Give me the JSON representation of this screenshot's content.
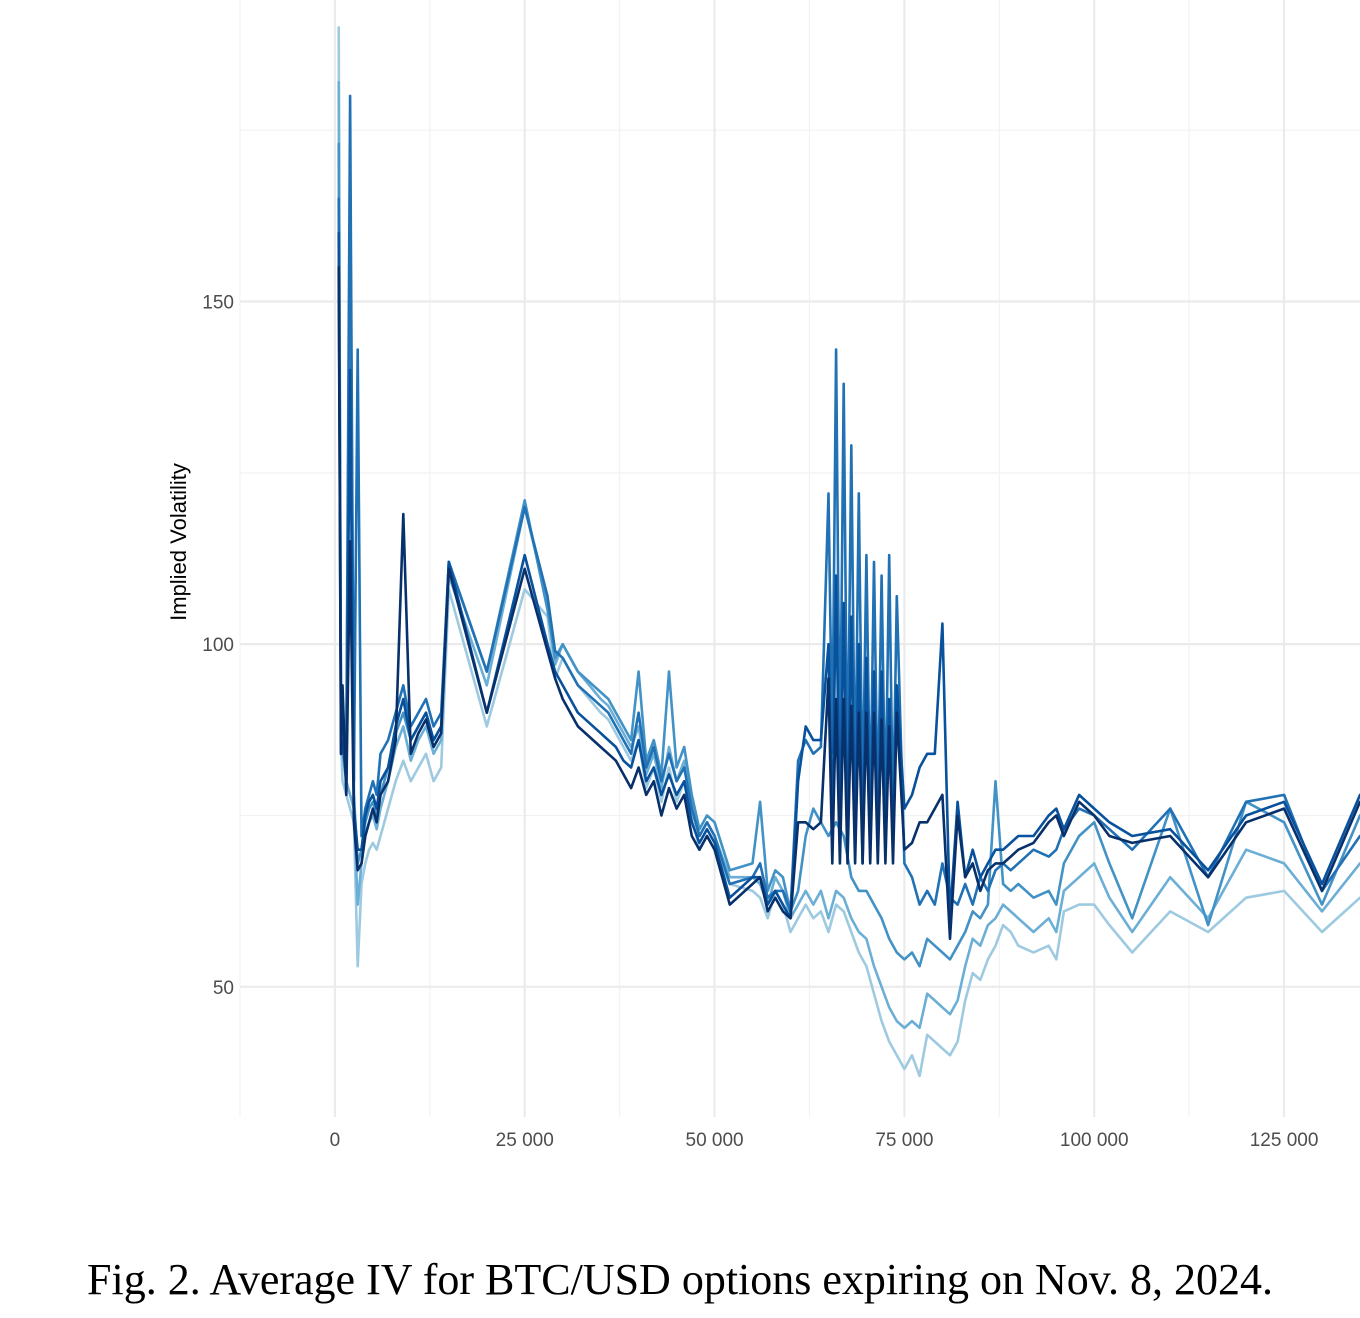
{
  "caption": "Fig. 2.  Average IV for BTC/USD options expiring on Nov. 8, 2024.",
  "chart_data": {
    "type": "line",
    "title": "",
    "xlabel": "",
    "ylabel": "Implied Volatility",
    "xlim": [
      -12500,
      135000
    ],
    "ylim": [
      31,
      194
    ],
    "x_ticks": [
      0,
      25000,
      50000,
      75000,
      100000,
      125000
    ],
    "x_tick_labels": [
      "0",
      "25 000",
      "50 000",
      "75 000",
      "100 000",
      "125 000"
    ],
    "y_ticks": [
      50,
      100,
      150
    ],
    "y_tick_labels": [
      "50",
      "100",
      "150"
    ],
    "grid": true,
    "legend": "none",
    "series": [
      {
        "color": "#9ecae1",
        "x": [
          500,
          800,
          1000,
          1500,
          2000,
          2500,
          3000,
          3500,
          4000,
          4500,
          5000,
          5500,
          6000,
          7000,
          8000,
          9000,
          10000,
          11000,
          12000,
          13000,
          14000,
          15000,
          20000,
          25000,
          28000,
          29000,
          30000,
          32000,
          35000,
          36000,
          37000,
          38000,
          39000,
          40000,
          41000,
          42000,
          43000,
          44000,
          45000,
          46000,
          47000,
          48000,
          49000,
          50000,
          52000,
          55000,
          56000,
          57000,
          58000,
          59000,
          60000,
          61000,
          62000,
          63000,
          64000,
          65000,
          66000,
          67000,
          68000,
          69000,
          70000,
          71000,
          72000,
          73000,
          74000,
          75000,
          76000,
          77000,
          78000,
          79000,
          80000,
          81000,
          82000,
          83000,
          84000,
          85000,
          86000,
          87000,
          88000,
          89000,
          90000,
          92000,
          94000,
          95000,
          96000,
          98000,
          100000,
          102000,
          105000,
          110000,
          115000,
          120000,
          125000,
          130000,
          135000
        ],
        "y": [
          190,
          86,
          80,
          78,
          76,
          74,
          53,
          65,
          68,
          70,
          71,
          70,
          72,
          76,
          80,
          83,
          80,
          82,
          84,
          80,
          82,
          108,
          88,
          108,
          104,
          95,
          98,
          94,
          90,
          89,
          87,
          85,
          83,
          86,
          79,
          82,
          77,
          82,
          77,
          80,
          75,
          70,
          72,
          70,
          65,
          64,
          63,
          60,
          64,
          62,
          58,
          60,
          62,
          60,
          61,
          58,
          62,
          61,
          58,
          55,
          53,
          49,
          45,
          42,
          40,
          38,
          40,
          37,
          43,
          42,
          41,
          40,
          42,
          48,
          52,
          51,
          54,
          56,
          59,
          58,
          56,
          55,
          56,
          54,
          61,
          62,
          62,
          59,
          55,
          61,
          58,
          63,
          64,
          58,
          63
        ]
      },
      {
        "color": "#6baed6",
        "x": [
          500,
          800,
          1000,
          1500,
          2000,
          2500,
          3000,
          3500,
          4000,
          4500,
          5000,
          5500,
          6000,
          7000,
          8000,
          9000,
          10000,
          11000,
          12000,
          13000,
          14000,
          15000,
          20000,
          25000,
          28000,
          29000,
          30000,
          32000,
          35000,
          36000,
          37000,
          38000,
          39000,
          40000,
          41000,
          42000,
          43000,
          44000,
          45000,
          46000,
          47000,
          48000,
          49000,
          50000,
          52000,
          55000,
          56000,
          57000,
          58000,
          59000,
          60000,
          61000,
          62000,
          63000,
          64000,
          65000,
          66000,
          67000,
          68000,
          69000,
          70000,
          71000,
          72000,
          73000,
          74000,
          75000,
          76000,
          77000,
          78000,
          79000,
          80000,
          81000,
          82000,
          83000,
          84000,
          85000,
          86000,
          87000,
          88000,
          89000,
          90000,
          92000,
          94000,
          95000,
          96000,
          98000,
          100000,
          102000,
          105000,
          110000,
          115000,
          120000,
          125000,
          130000,
          135000
        ],
        "y": [
          182,
          88,
          84,
          80,
          78,
          76,
          62,
          68,
          72,
          74,
          75,
          73,
          76,
          80,
          85,
          88,
          83,
          86,
          88,
          84,
          86,
          110,
          94,
          120,
          106,
          97,
          100,
          96,
          92,
          91,
          89,
          87,
          85,
          88,
          81,
          84,
          79,
          85,
          80,
          83,
          77,
          72,
          74,
          72,
          66,
          66,
          65,
          62,
          66,
          64,
          60,
          62,
          64,
          62,
          64,
          60,
          64,
          63,
          60,
          58,
          57,
          53,
          50,
          47,
          45,
          44,
          45,
          44,
          49,
          48,
          47,
          46,
          48,
          53,
          57,
          56,
          59,
          60,
          62,
          61,
          60,
          58,
          60,
          58,
          64,
          66,
          68,
          63,
          58,
          66,
          60,
          70,
          68,
          61,
          68
        ]
      },
      {
        "color": "#4292c6",
        "x": [
          500,
          800,
          1000,
          1500,
          2000,
          2500,
          3000,
          3500,
          4000,
          4500,
          5000,
          5500,
          6000,
          7000,
          8000,
          9000,
          10000,
          11000,
          12000,
          13000,
          14000,
          15000,
          20000,
          25000,
          28000,
          29000,
          30000,
          32000,
          35000,
          36000,
          37000,
          38000,
          39000,
          40000,
          41000,
          42000,
          43000,
          44000,
          45000,
          46000,
          47000,
          48000,
          49000,
          50000,
          52000,
          55000,
          56000,
          57000,
          58000,
          59000,
          60000,
          61000,
          62000,
          63000,
          64000,
          65000,
          66000,
          67000,
          68000,
          69000,
          70000,
          71000,
          72000,
          73000,
          74000,
          75000,
          76000,
          77000,
          78000,
          79000,
          80000,
          81000,
          82000,
          83000,
          84000,
          85000,
          86000,
          87000,
          88000,
          89000,
          90000,
          92000,
          94000,
          95000,
          96000,
          98000,
          100000,
          102000,
          105000,
          110000,
          115000,
          120000,
          125000,
          130000,
          135000
        ],
        "y": [
          173,
          90,
          86,
          82,
          170,
          78,
          68,
          70,
          74,
          76,
          77,
          75,
          78,
          82,
          87,
          90,
          86,
          88,
          90,
          86,
          88,
          112,
          96,
          121,
          105,
          98,
          100,
          96,
          93,
          92,
          90,
          88,
          86,
          96,
          83,
          86,
          81,
          96,
          82,
          85,
          78,
          73,
          75,
          74,
          67,
          68,
          77,
          64,
          67,
          66,
          61,
          64,
          72,
          76,
          74,
          72,
          74,
          72,
          66,
          64,
          64,
          62,
          60,
          57,
          55,
          54,
          55,
          53,
          57,
          56,
          55,
          54,
          56,
          58,
          61,
          60,
          62,
          80,
          65,
          64,
          65,
          63,
          64,
          62,
          68,
          72,
          74,
          68,
          60,
          76,
          59,
          77,
          74,
          62,
          75
        ]
      },
      {
        "color": "#2171b5",
        "x": [
          500,
          800,
          1000,
          1500,
          2000,
          2500,
          3000,
          3500,
          4000,
          4500,
          5000,
          5500,
          6000,
          7000,
          8000,
          9000,
          10000,
          11000,
          12000,
          13000,
          14000,
          15000,
          20000,
          25000,
          28000,
          29000,
          30000,
          32000,
          35000,
          36000,
          37000,
          38000,
          39000,
          40000,
          41000,
          42000,
          43000,
          44000,
          45000,
          46000,
          47000,
          48000,
          49000,
          50000,
          52000,
          55000,
          56000,
          57000,
          58000,
          59000,
          60000,
          61000,
          62000,
          63000,
          64000,
          65000,
          65500,
          66000,
          66500,
          67000,
          67500,
          68000,
          68500,
          69000,
          69500,
          70000,
          70500,
          71000,
          71500,
          72000,
          72500,
          73000,
          73500,
          74000,
          75000,
          76000,
          77000,
          78000,
          79000,
          80000,
          81000,
          82000,
          83000,
          84000,
          85000,
          86000,
          87000,
          88000,
          89000,
          90000,
          92000,
          94000,
          95000,
          96000,
          98000,
          100000,
          102000,
          105000,
          110000,
          115000,
          120000,
          125000,
          130000,
          135000
        ],
        "y": [
          165,
          92,
          88,
          84,
          180,
          80,
          143,
          72,
          76,
          78,
          80,
          78,
          84,
          86,
          90,
          94,
          88,
          90,
          92,
          88,
          90,
          112,
          96,
          120,
          107,
          99,
          98,
          94,
          91,
          90,
          88,
          86,
          84,
          90,
          82,
          85,
          80,
          84,
          80,
          82,
          76,
          72,
          74,
          72,
          65,
          66,
          68,
          63,
          64,
          64,
          61,
          83,
          86,
          84,
          85,
          122,
          84,
          143,
          80,
          138,
          78,
          129,
          77,
          122,
          76,
          113,
          75,
          112,
          75,
          110,
          75,
          113,
          74,
          107,
          68,
          66,
          62,
          64,
          62,
          68,
          63,
          62,
          65,
          62,
          66,
          64,
          67,
          68,
          67,
          68,
          70,
          69,
          70,
          73,
          76,
          75,
          73,
          70,
          76,
          66,
          77,
          78,
          64,
          72
        ]
      },
      {
        "color": "#08519c",
        "x": [
          500,
          800,
          1000,
          1500,
          2000,
          2500,
          3000,
          3500,
          4000,
          4500,
          5000,
          5500,
          6000,
          7000,
          8000,
          9000,
          10000,
          11000,
          12000,
          13000,
          14000,
          15000,
          20000,
          25000,
          28000,
          29000,
          30000,
          32000,
          35000,
          36000,
          37000,
          38000,
          39000,
          40000,
          41000,
          42000,
          43000,
          44000,
          45000,
          46000,
          47000,
          48000,
          49000,
          50000,
          52000,
          55000,
          56000,
          57000,
          58000,
          59000,
          60000,
          61000,
          62000,
          63000,
          64000,
          65000,
          65500,
          66000,
          66500,
          67000,
          67500,
          68000,
          68500,
          69000,
          69500,
          70000,
          70500,
          71000,
          71500,
          72000,
          72500,
          73000,
          73500,
          74000,
          75000,
          76000,
          77000,
          78000,
          79000,
          80000,
          81000,
          82000,
          83000,
          84000,
          85000,
          86000,
          87000,
          88000,
          89000,
          90000,
          92000,
          94000,
          95000,
          96000,
          98000,
          100000,
          102000,
          105000,
          110000,
          115000,
          120000,
          125000,
          130000,
          135000
        ],
        "y": [
          160,
          84,
          86,
          80,
          140,
          76,
          70,
          70,
          75,
          77,
          78,
          76,
          80,
          82,
          88,
          92,
          86,
          88,
          90,
          86,
          88,
          112,
          90,
          113,
          100,
          96,
          94,
          90,
          87,
          86,
          85,
          83,
          82,
          86,
          80,
          82,
          78,
          81,
          78,
          80,
          74,
          71,
          73,
          71,
          63,
          66,
          66,
          62,
          64,
          62,
          60,
          80,
          88,
          86,
          86,
          100,
          72,
          110,
          70,
          106,
          70,
          104,
          70,
          100,
          68,
          98,
          70,
          96,
          70,
          96,
          70,
          92,
          70,
          94,
          76,
          78,
          82,
          84,
          84,
          103,
          60,
          77,
          66,
          70,
          66,
          68,
          70,
          70,
          71,
          72,
          72,
          75,
          76,
          73,
          78,
          76,
          74,
          72,
          73,
          67,
          75,
          77,
          65,
          78
        ]
      },
      {
        "color": "#08306b",
        "x": [
          500,
          800,
          1000,
          1500,
          2000,
          2500,
          3000,
          3500,
          4000,
          4500,
          5000,
          5500,
          6000,
          7000,
          8000,
          9000,
          10000,
          11000,
          12000,
          13000,
          14000,
          15000,
          20000,
          25000,
          28000,
          29000,
          30000,
          32000,
          35000,
          36000,
          37000,
          38000,
          39000,
          40000,
          41000,
          42000,
          43000,
          44000,
          45000,
          46000,
          47000,
          48000,
          49000,
          50000,
          52000,
          55000,
          56000,
          57000,
          58000,
          59000,
          60000,
          61000,
          62000,
          63000,
          64000,
          65000,
          65500,
          66000,
          66500,
          67000,
          67500,
          68000,
          68500,
          69000,
          69500,
          70000,
          70500,
          71000,
          71500,
          72000,
          72500,
          73000,
          73500,
          74000,
          75000,
          76000,
          77000,
          78000,
          79000,
          80000,
          81000,
          82000,
          83000,
          84000,
          85000,
          86000,
          87000,
          88000,
          89000,
          90000,
          92000,
          94000,
          95000,
          96000,
          98000,
          100000,
          102000,
          105000,
          110000,
          115000,
          120000,
          125000,
          130000,
          135000
        ],
        "y": [
          155,
          84,
          94,
          78,
          115,
          74,
          67,
          68,
          72,
          74,
          76,
          74,
          78,
          80,
          86,
          119,
          84,
          87,
          89,
          85,
          87,
          111,
          90,
          111,
          99,
          95,
          92,
          88,
          85,
          84,
          83,
          81,
          79,
          82,
          78,
          80,
          75,
          79,
          76,
          78,
          72,
          70,
          72,
          70,
          62,
          65,
          66,
          61,
          63,
          61,
          60,
          74,
          74,
          73,
          74,
          95,
          68,
          92,
          68,
          92,
          68,
          91,
          68,
          90,
          68,
          90,
          68,
          90,
          68,
          89,
          68,
          88,
          68,
          90,
          70,
          71,
          74,
          74,
          76,
          78,
          57,
          75,
          66,
          68,
          64,
          67,
          68,
          68,
          69,
          70,
          71,
          74,
          75,
          72,
          77,
          75,
          72,
          71,
          72,
          66,
          74,
          76,
          64,
          77
        ]
      }
    ]
  }
}
